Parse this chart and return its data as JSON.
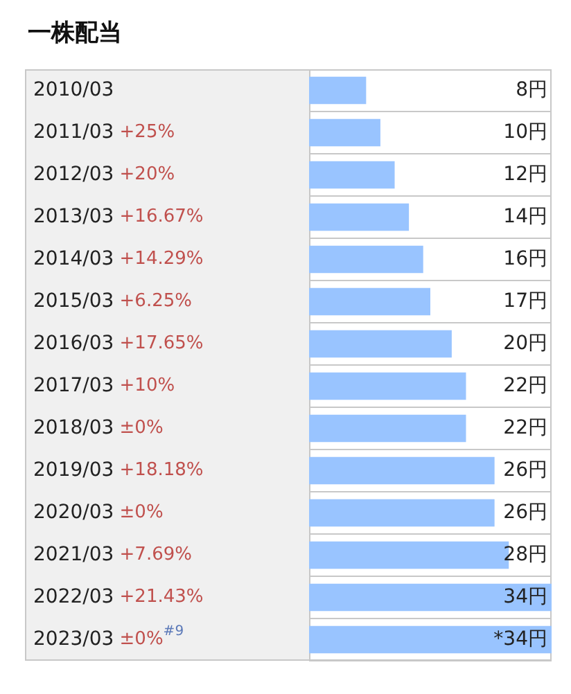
{
  "chart_data": {
    "type": "bar",
    "title": "一株配当",
    "orientation": "horizontal",
    "grid": "y",
    "tick_labels": "y",
    "categories": [
      "2010/03",
      "2011/03 +25%",
      "2012/03 +20%",
      "2013/03 +16.67%",
      "2014/03 +14.29%",
      "2015/03 +6.25%",
      "2016/03 +17.65%",
      "2017/03 +10%",
      "2018/03 ±0%",
      "2019/03 +18.18%",
      "2020/03 ±0%",
      "2021/03 +7.69%",
      "2022/03 +21.43%",
      "2023/03 ±0%$^{#9}$"
    ],
    "values": [
      8,
      10,
      12,
      14,
      16,
      17,
      20,
      22,
      22,
      26,
      26,
      28,
      34,
      34
    ],
    "value_labels": [
      "8円",
      "10円",
      "12円",
      "14円",
      "16円",
      "17円",
      "20円",
      "22円",
      "22円",
      "26円",
      "26円",
      "28円",
      "34円",
      "*34円"
    ],
    "color": "#99c4ff"
  }
}
